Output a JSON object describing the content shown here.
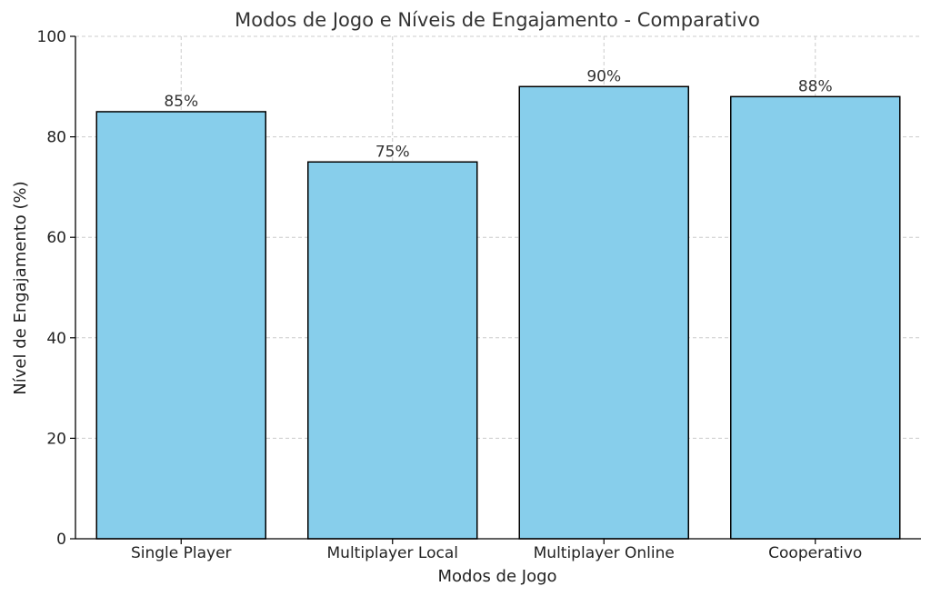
{
  "chart_data": {
    "type": "bar",
    "title": "Modos de Jogo e Níveis de Engajamento - Comparativo",
    "xlabel": "Modos de Jogo",
    "ylabel": "Nível de Engajamento (%)",
    "categories": [
      "Single Player",
      "Multiplayer Local",
      "Multiplayer Online",
      "Cooperativo"
    ],
    "values": [
      85,
      75,
      90,
      88
    ],
    "data_labels": [
      "85%",
      "75%",
      "90%",
      "88%"
    ],
    "ylim": [
      0,
      100
    ],
    "yticks": [
      0,
      20,
      40,
      60,
      80,
      100
    ],
    "grid": true,
    "bar_color": "#87CEEB",
    "edge_color": "#000000"
  }
}
